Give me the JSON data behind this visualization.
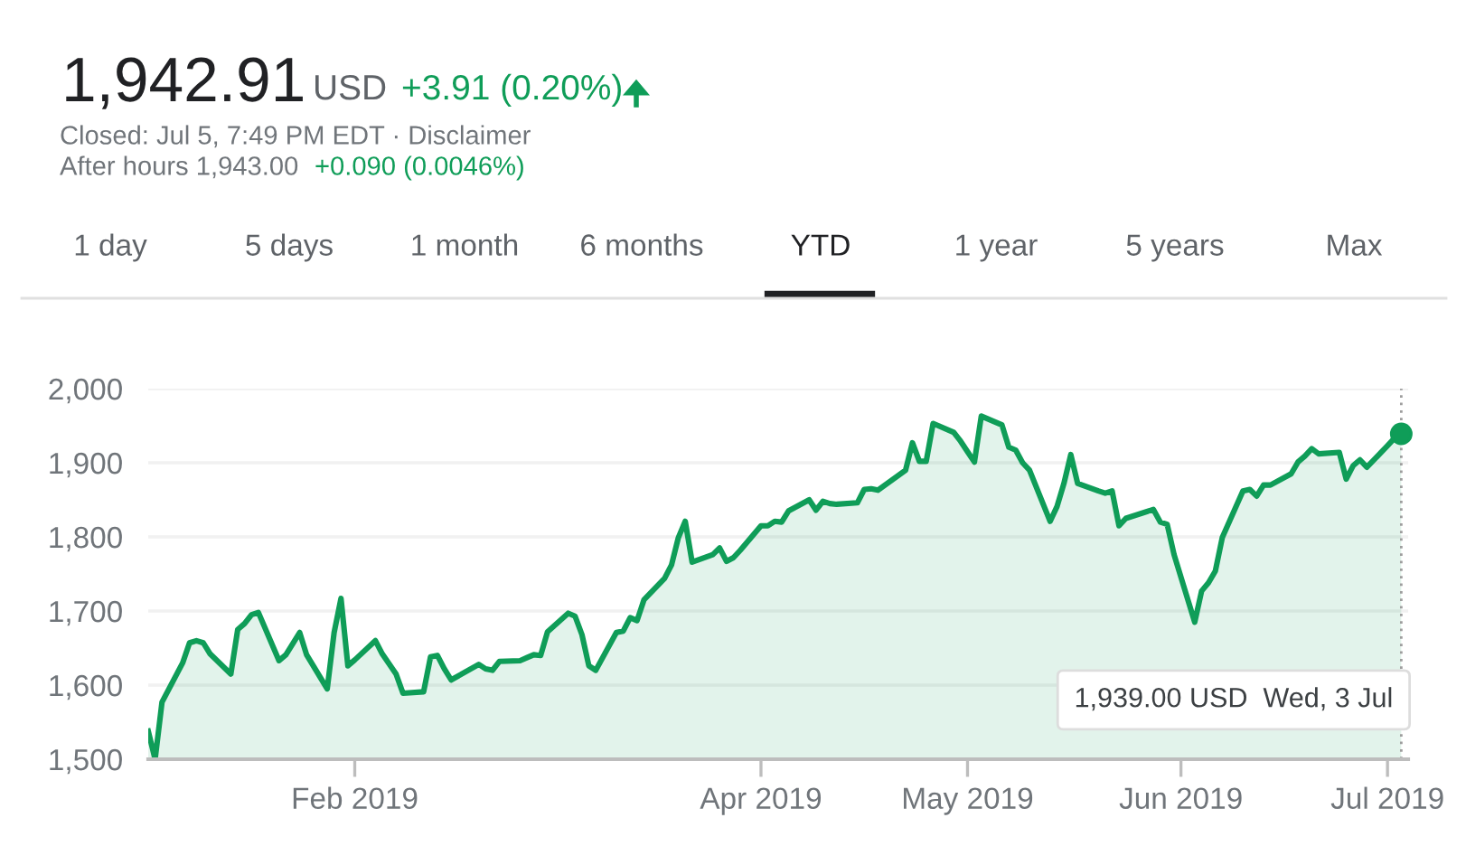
{
  "chart_data": {
    "type": "area",
    "title": "1,942.91",
    "annotations": [
      "USD",
      "+3.91 (0.20%)",
      "Closed: Jul 5, 7:49 PM EDT · Disclaimer",
      "After hours 1,943.00",
      "+0.090 (0.0046%)",
      "1 day",
      "5 days",
      "1 month",
      "6 months",
      "YTD",
      "1 year",
      "5 years",
      "Max",
      "1,939.00 USD  Wed, 3 Jul"
    ],
    "ref_lines": [
      {
        "axis": "x",
        "value": "2019-07-03",
        "color": "#9e9e9e",
        "line_style": "dotted"
      }
    ],
    "x": [
      "2019-01-02",
      "2019-01-03",
      "2019-01-04",
      "2019-01-07",
      "2019-01-08",
      "2019-01-09",
      "2019-01-10",
      "2019-01-11",
      "2019-01-14",
      "2019-01-15",
      "2019-01-16",
      "2019-01-17",
      "2019-01-18",
      "2019-01-21",
      "2019-01-22",
      "2019-01-23",
      "2019-01-24",
      "2019-01-25",
      "2019-01-28",
      "2019-01-29",
      "2019-01-30",
      "2019-01-31",
      "2019-02-01",
      "2019-02-04",
      "2019-02-05",
      "2019-02-07",
      "2019-02-08",
      "2019-02-11",
      "2019-02-12",
      "2019-02-13",
      "2019-02-14",
      "2019-02-15",
      "2019-02-19",
      "2019-02-20",
      "2019-02-21",
      "2019-02-22",
      "2019-02-25",
      "2019-02-26",
      "2019-02-27",
      "2019-02-28",
      "2019-03-01",
      "2019-03-04",
      "2019-03-05",
      "2019-03-06",
      "2019-03-07",
      "2019-03-08",
      "2019-03-11",
      "2019-03-12",
      "2019-03-13",
      "2019-03-14",
      "2019-03-15",
      "2019-03-18",
      "2019-03-19",
      "2019-03-20",
      "2019-03-21",
      "2019-03-22",
      "2019-03-25",
      "2019-03-26",
      "2019-03-27",
      "2019-03-28",
      "2019-03-29",
      "2019-04-01",
      "2019-04-02",
      "2019-04-03",
      "2019-04-04",
      "2019-04-05",
      "2019-04-08",
      "2019-04-09",
      "2019-04-10",
      "2019-04-11",
      "2019-04-12",
      "2019-04-15",
      "2019-04-16",
      "2019-04-17",
      "2019-04-18",
      "2019-04-22",
      "2019-04-23",
      "2019-04-24",
      "2019-04-25",
      "2019-04-26",
      "2019-04-29",
      "2019-04-30",
      "2019-05-01",
      "2019-05-02",
      "2019-05-03",
      "2019-05-06",
      "2019-05-07",
      "2019-05-08",
      "2019-05-09",
      "2019-05-10",
      "2019-05-13",
      "2019-05-14",
      "2019-05-15",
      "2019-05-16",
      "2019-05-17",
      "2019-05-20",
      "2019-05-21",
      "2019-05-22",
      "2019-05-23",
      "2019-05-24",
      "2019-05-28",
      "2019-05-29",
      "2019-05-30",
      "2019-05-31",
      "2019-06-03",
      "2019-06-04",
      "2019-06-05",
      "2019-06-06",
      "2019-06-07",
      "2019-06-10",
      "2019-06-11",
      "2019-06-12",
      "2019-06-13",
      "2019-06-14",
      "2019-06-17",
      "2019-06-18",
      "2019-06-19",
      "2019-06-20",
      "2019-06-21",
      "2019-06-24",
      "2019-06-25",
      "2019-06-26",
      "2019-06-27",
      "2019-06-28",
      "2019-07-01",
      "2019-07-02",
      "2019-07-03"
    ],
    "series": [
      {
        "color": "#0f9d58",
        "values": [
          1538,
          1500,
          1577,
          1630,
          1657,
          1660,
          1657,
          1642,
          1615,
          1675,
          1683,
          1695,
          1698,
          1633,
          1641,
          1656,
          1671,
          1641,
          1595,
          1671,
          1717,
          1626,
          1634,
          1660,
          1642,
          1615,
          1589,
          1591,
          1638,
          1640,
          1622,
          1607,
          1628,
          1622,
          1620,
          1632,
          1633,
          1637,
          1641,
          1640,
          1672,
          1697,
          1693,
          1668,
          1626,
          1620,
          1671,
          1673,
          1691,
          1687,
          1715,
          1744,
          1762,
          1799,
          1821,
          1766,
          1776,
          1785,
          1767,
          1772,
          1782,
          1815,
          1815,
          1821,
          1820,
          1835,
          1850,
          1836,
          1848,
          1845,
          1844,
          1846,
          1864,
          1865,
          1863,
          1890,
          1927,
          1902,
          1902,
          1953,
          1941,
          1929,
          1915,
          1901,
          1963,
          1951,
          1921,
          1917,
          1900,
          1890,
          1821,
          1841,
          1872,
          1911,
          1872,
          1862,
          1859,
          1862,
          1815,
          1825,
          1837,
          1820,
          1817,
          1776,
          1685,
          1727,
          1738,
          1754,
          1799,
          1862,
          1864,
          1855,
          1870,
          1870,
          1885,
          1901,
          1909,
          1919,
          1912,
          1914,
          1878,
          1896,
          1904,
          1894,
          1923,
          1933,
          1939
        ]
      }
    ],
    "xlim": [
      "2019-01-02",
      "2019-07-04"
    ],
    "ylim": [
      1500,
      2000
    ],
    "xticks": [
      {
        "value": "2019-02-01",
        "label": "Feb 2019"
      },
      {
        "value": "2019-04-01",
        "label": "Apr 2019"
      },
      {
        "value": "2019-05-01",
        "label": "May 2019"
      },
      {
        "value": "2019-06-01",
        "label": "Jun 2019"
      },
      {
        "value": "2019-07-01",
        "label": "Jul 2019"
      }
    ],
    "yticks": [
      {
        "value": 1500,
        "label": "1,500"
      },
      {
        "value": 1600,
        "label": "1,600"
      },
      {
        "value": 1700,
        "label": "1,700"
      },
      {
        "value": 1800,
        "label": "1,800"
      },
      {
        "value": 1900,
        "label": "1,900"
      },
      {
        "value": 2000,
        "label": "2,000"
      }
    ],
    "grid": "y"
  }
}
